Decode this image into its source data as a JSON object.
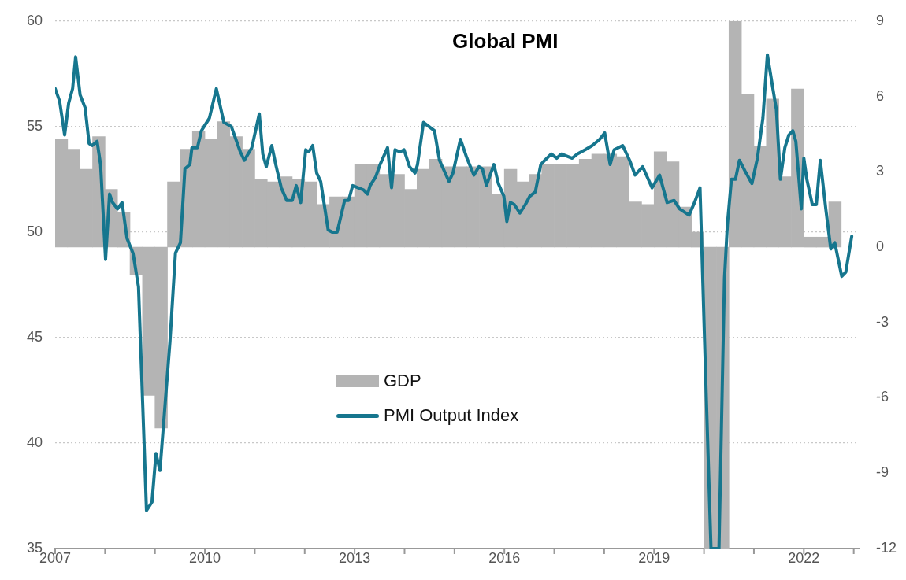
{
  "chart_data": {
    "type": "bar",
    "title": "Global PMI",
    "legend": "bottom",
    "grid": "y",
    "marker": "none",
    "line_style": "solid",
    "xlim": [
      2007,
      2023.1
    ],
    "xticks": [
      2007,
      {
        "value": 2008,
        "label": null
      },
      {
        "value": 2009,
        "label": null
      },
      2010,
      {
        "value": 2011,
        "label": null
      },
      {
        "value": 2012,
        "label": null
      },
      2013,
      {
        "value": 2014,
        "label": null
      },
      {
        "value": 2015,
        "label": null
      },
      2016,
      {
        "value": 2017,
        "label": null
      },
      {
        "value": 2018,
        "label": null
      },
      2019,
      {
        "value": 2020,
        "label": null
      },
      {
        "value": 2021,
        "label": null
      },
      2022,
      {
        "value": 2023,
        "label": null
      }
    ],
    "ylim": [
      35,
      60
    ],
    "yticks": [
      35,
      40,
      45,
      50,
      55,
      60
    ],
    "y2lim": [
      -12,
      9
    ],
    "y2ticks": [
      -12,
      -9,
      -6,
      -3,
      0,
      3,
      6,
      9
    ],
    "series": [
      {
        "name": "GDP",
        "axis": "y2",
        "color": "#b4b4b4",
        "x": [
          2007.125,
          2007.375,
          2007.625,
          2007.875,
          2008.125,
          2008.375,
          2008.625,
          2008.875,
          2009.125,
          2009.375,
          2009.625,
          2009.875,
          2010.125,
          2010.375,
          2010.625,
          2010.875,
          2011.125,
          2011.375,
          2011.625,
          2011.875,
          2012.125,
          2012.375,
          2012.625,
          2012.875,
          2013.125,
          2013.375,
          2013.625,
          2013.875,
          2014.125,
          2014.375,
          2014.625,
          2014.875,
          2015.125,
          2015.375,
          2015.625,
          2015.875,
          2016.125,
          2016.375,
          2016.625,
          2016.875,
          2017.125,
          2017.375,
          2017.625,
          2017.875,
          2018.125,
          2018.375,
          2018.625,
          2018.875,
          2019.125,
          2019.375,
          2019.625,
          2019.875,
          2020.125,
          2020.375,
          2020.625,
          2020.875,
          2021.125,
          2021.375,
          2021.625,
          2021.875,
          2022.125,
          2022.375,
          2022.625
        ],
        "values": [
          4.3,
          3.9,
          3.1,
          4.4,
          2.3,
          1.4,
          -1.1,
          -5.9,
          -7.2,
          2.6,
          3.9,
          4.6,
          4.3,
          5.0,
          4.4,
          3.9,
          2.7,
          2.6,
          2.8,
          2.7,
          2.6,
          1.7,
          2.0,
          2.0,
          3.3,
          3.3,
          2.9,
          2.9,
          2.3,
          3.1,
          3.5,
          3.2,
          3.2,
          3.2,
          3.2,
          2.1,
          3.1,
          2.6,
          2.9,
          3.3,
          3.3,
          3.3,
          3.5,
          3.7,
          3.7,
          3.6,
          1.8,
          1.7,
          3.8,
          3.4,
          1.6,
          0.6,
          -12,
          -12,
          9,
          6.1,
          4.0,
          5.9,
          2.8,
          6.3,
          0.4,
          0.4,
          1.8
        ]
      },
      {
        "name": "PMI Output Index",
        "type": "line",
        "color": "#16768e",
        "x": [
          2007.0,
          2007.09,
          2007.19,
          2007.27,
          2007.35,
          2007.41,
          2007.5,
          2007.6,
          2007.68,
          2007.74,
          2007.84,
          2007.91,
          2008.01,
          2008.09,
          2008.15,
          2008.25,
          2008.34,
          2008.44,
          2008.56,
          2008.67,
          2008.83,
          2008.94,
          2009.02,
          2009.1,
          2009.3,
          2009.41,
          2009.51,
          2009.6,
          2009.7,
          2009.74,
          2009.85,
          2009.93,
          2010.09,
          2010.23,
          2010.38,
          2010.53,
          2010.71,
          2010.79,
          2010.94,
          2011.09,
          2011.16,
          2011.23,
          2011.34,
          2011.42,
          2011.53,
          2011.64,
          2011.75,
          2011.83,
          2011.92,
          2012.02,
          2012.08,
          2012.16,
          2012.24,
          2012.32,
          2012.47,
          2012.55,
          2012.65,
          2012.8,
          2012.88,
          2012.96,
          2013.07,
          2013.18,
          2013.26,
          2013.31,
          2013.42,
          2013.51,
          2013.66,
          2013.74,
          2013.81,
          2013.91,
          2013.99,
          2014.1,
          2014.21,
          2014.26,
          2014.38,
          2014.49,
          2014.6,
          2014.7,
          2014.89,
          2014.97,
          2015.12,
          2015.25,
          2015.39,
          2015.49,
          2015.56,
          2015.64,
          2015.79,
          2015.88,
          2015.99,
          2016.05,
          2016.12,
          2016.2,
          2016.31,
          2016.42,
          2016.51,
          2016.62,
          2016.73,
          2016.81,
          2016.94,
          2017.05,
          2017.14,
          2017.36,
          2017.46,
          2017.62,
          2017.76,
          2017.91,
          2018.01,
          2018.12,
          2018.2,
          2018.37,
          2018.51,
          2018.62,
          2018.77,
          2018.96,
          2019.11,
          2019.26,
          2019.4,
          2019.51,
          2019.7,
          2019.81,
          2019.92,
          2020.03,
          2020.14,
          2020.3,
          2020.41,
          2020.47,
          2020.55,
          2020.63,
          2020.71,
          2020.82,
          2020.96,
          2021.07,
          2021.18,
          2021.27,
          2021.38,
          2021.45,
          2021.53,
          2021.62,
          2021.7,
          2021.78,
          2021.84,
          2021.95,
          2022.0,
          2022.06,
          2022.17,
          2022.25,
          2022.33,
          2022.44,
          2022.54,
          2022.62,
          2022.76,
          2022.84,
          2022.96
        ],
        "values": [
          56.8,
          56.2,
          54.6,
          56.1,
          56.8,
          58.3,
          56.5,
          55.9,
          54.2,
          54.1,
          54.3,
          53.2,
          48.7,
          51.8,
          51.4,
          51.1,
          51.4,
          49.7,
          49.0,
          47.4,
          36.8,
          37.2,
          39.5,
          38.7,
          44.8,
          49.0,
          49.5,
          53.0,
          53.2,
          54.0,
          54.0,
          54.8,
          55.4,
          56.8,
          55.2,
          55.0,
          53.8,
          53.4,
          54.0,
          55.6,
          53.7,
          53.1,
          54.1,
          53.2,
          52.1,
          51.5,
          51.5,
          52.2,
          51.4,
          53.9,
          53.8,
          54.1,
          52.8,
          52.4,
          50.1,
          50.0,
          50.0,
          51.5,
          51.5,
          52.2,
          52.1,
          52.0,
          51.8,
          52.2,
          52.6,
          53.2,
          54.0,
          52.1,
          53.9,
          53.8,
          53.9,
          53.1,
          52.8,
          53.2,
          55.2,
          55.0,
          54.8,
          53.4,
          52.4,
          52.8,
          54.4,
          53.5,
          52.7,
          53.1,
          53.0,
          52.2,
          53.2,
          52.3,
          51.7,
          50.5,
          51.4,
          51.3,
          50.9,
          51.3,
          51.7,
          51.9,
          53.2,
          53.4,
          53.7,
          53.5,
          53.7,
          53.5,
          53.7,
          53.9,
          54.1,
          54.4,
          54.7,
          53.2,
          53.9,
          54.1,
          53.4,
          52.7,
          53.1,
          52.1,
          52.7,
          51.4,
          51.5,
          51.1,
          50.8,
          51.4,
          52.1,
          43.4,
          35,
          35,
          47.8,
          50.4,
          52.5,
          52.5,
          53.4,
          52.9,
          52.3,
          53.5,
          55.4,
          58.4,
          56.8,
          55.8,
          52.5,
          54.0,
          54.6,
          54.8,
          54.3,
          51.1,
          53.5,
          52.5,
          51.3,
          51.3,
          53.4,
          51.1,
          49.2,
          49.5,
          47.9,
          48.1,
          49.8
        ]
      }
    ]
  }
}
